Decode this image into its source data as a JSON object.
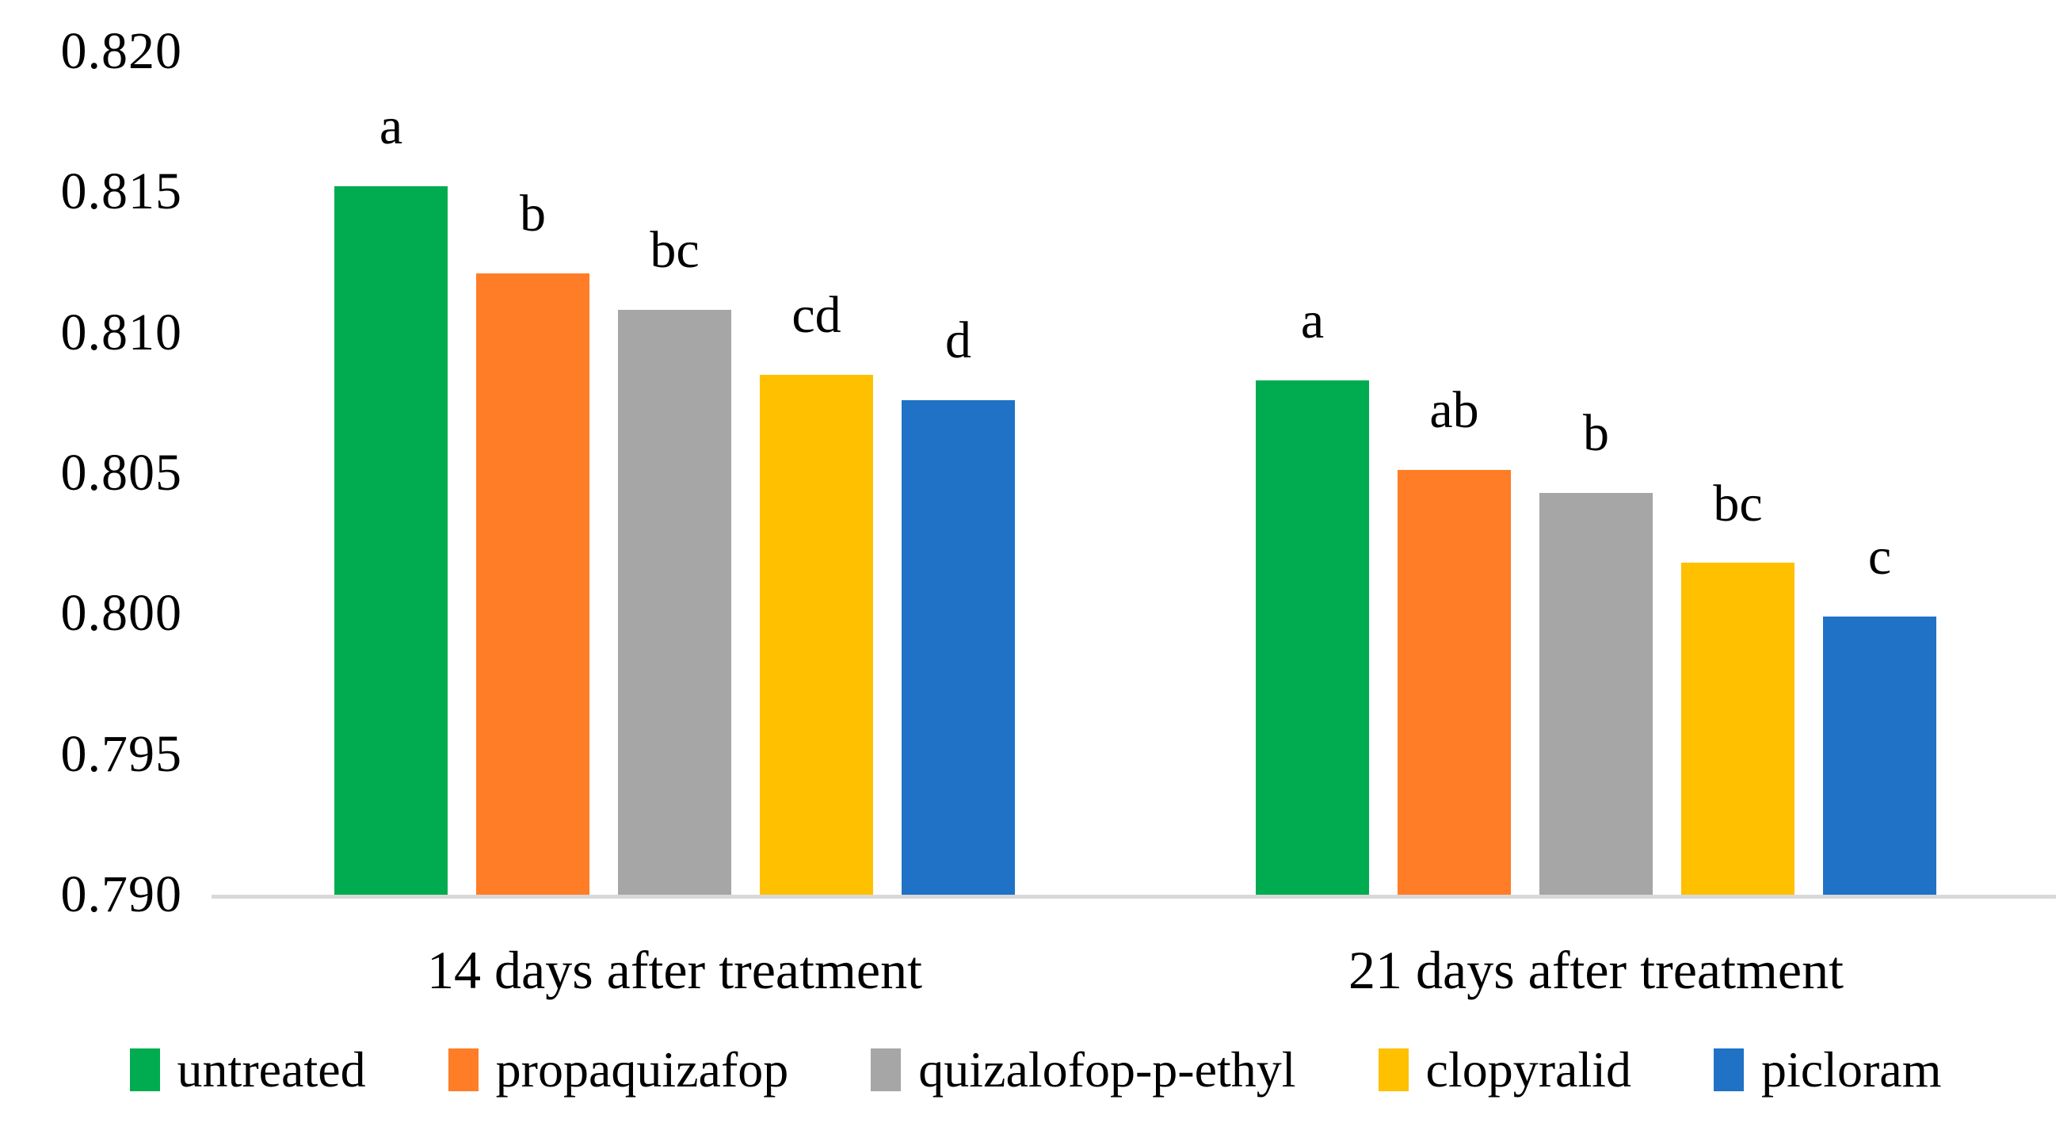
{
  "chart_data": {
    "type": "bar",
    "categories": [
      "14 days after treatment",
      "21 days after treatment"
    ],
    "series": [
      {
        "name": "untreated",
        "color": "#00AC4F",
        "values": [
          0.8152,
          0.8083
        ],
        "letters": [
          "a",
          "a"
        ]
      },
      {
        "name": "propaquizafop",
        "color": "#FF7D27",
        "values": [
          0.8121,
          0.8051
        ],
        "letters": [
          "b",
          "ab"
        ]
      },
      {
        "name": "quizalofop-p-ethyl",
        "color": "#A6A6A6",
        "values": [
          0.8108,
          0.8043
        ],
        "letters": [
          "bc",
          "b"
        ]
      },
      {
        "name": "clopyralid",
        "color": "#FFC000",
        "values": [
          0.8085,
          0.8018
        ],
        "letters": [
          "cd",
          "bc"
        ]
      },
      {
        "name": "picloram",
        "color": "#1F72C6",
        "values": [
          0.8076,
          0.7999
        ],
        "letters": [
          "d",
          "c"
        ]
      }
    ],
    "title": "",
    "xlabel": "",
    "ylabel": "",
    "ylim": [
      0.79,
      0.82
    ],
    "ytick_step": 0.005,
    "ytick_labels": [
      "0.820",
      "0.815",
      "0.810",
      "0.805",
      "0.800",
      "0.795",
      "0.790"
    ],
    "grid": false,
    "legend_position": "bottom",
    "axis_line_color": "#D9D9D9",
    "text_color": "#000000"
  }
}
